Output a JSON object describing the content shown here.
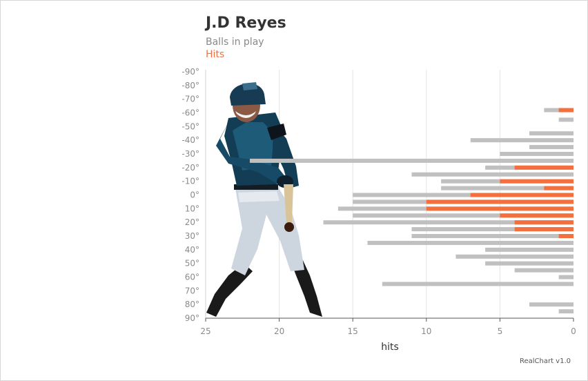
{
  "chart_data": {
    "type": "bar",
    "orientation": "horizontal",
    "title": "J.D Reyes",
    "subtitle": "",
    "xlabel": "hits",
    "ylabel": "",
    "xlim": [
      25,
      0
    ],
    "x_reversed": true,
    "x_ticks": [
      "25",
      "20",
      "15",
      "10",
      "5",
      "0"
    ],
    "x_tick_values": [
      25,
      20,
      15,
      10,
      5,
      0
    ],
    "categories": [
      "-90°",
      "-80°",
      "-70°",
      "-60°",
      "-50°",
      "-40°",
      "-30°",
      "-20°",
      "-10°",
      "0°",
      "10°",
      "20°",
      "30°",
      "40°",
      "50°",
      "60°",
      "70°",
      "80°",
      "90°"
    ],
    "category_values": [
      -90,
      -80,
      -70,
      -60,
      -50,
      -40,
      -30,
      -20,
      -10,
      0,
      10,
      20,
      30,
      40,
      50,
      60,
      70,
      80,
      90
    ],
    "grid": true,
    "legend_position": "top-left",
    "series": [
      {
        "name": "Balls in play",
        "color": "#c0c0c0",
        "points": [
          {
            "angle": -62,
            "value": 2
          },
          {
            "angle": -55,
            "value": 1
          },
          {
            "angle": -45,
            "value": 3
          },
          {
            "angle": -40,
            "value": 7
          },
          {
            "angle": -35,
            "value": 3
          },
          {
            "angle": -30,
            "value": 5
          },
          {
            "angle": -25,
            "value": 22
          },
          {
            "angle": -20,
            "value": 6
          },
          {
            "angle": -15,
            "value": 11
          },
          {
            "angle": -10,
            "value": 9
          },
          {
            "angle": -5,
            "value": 9
          },
          {
            "angle": 0,
            "value": 15
          },
          {
            "angle": 5,
            "value": 15
          },
          {
            "angle": 10,
            "value": 16
          },
          {
            "angle": 15,
            "value": 15
          },
          {
            "angle": 20,
            "value": 17
          },
          {
            "angle": 25,
            "value": 11
          },
          {
            "angle": 30,
            "value": 11
          },
          {
            "angle": 35,
            "value": 14
          },
          {
            "angle": 40,
            "value": 6
          },
          {
            "angle": 45,
            "value": 8
          },
          {
            "angle": 50,
            "value": 6
          },
          {
            "angle": 55,
            "value": 4
          },
          {
            "angle": 60,
            "value": 1
          },
          {
            "angle": 65,
            "value": 13
          },
          {
            "angle": 80,
            "value": 3
          },
          {
            "angle": 85,
            "value": 1
          }
        ]
      },
      {
        "name": "Hits",
        "color": "#f36f3e",
        "points": [
          {
            "angle": -62,
            "value": 1
          },
          {
            "angle": -20,
            "value": 4
          },
          {
            "angle": -10,
            "value": 5
          },
          {
            "angle": -5,
            "value": 2
          },
          {
            "angle": 0,
            "value": 7
          },
          {
            "angle": 5,
            "value": 10
          },
          {
            "angle": 10,
            "value": 10
          },
          {
            "angle": 15,
            "value": 5
          },
          {
            "angle": 20,
            "value": 4
          },
          {
            "angle": 25,
            "value": 4
          },
          {
            "angle": 30,
            "value": 1
          }
        ]
      }
    ],
    "credit": "RealChart v1.0"
  },
  "ui": {
    "subtitle_text": "Balls in play",
    "legend_hits_text": "Hits",
    "credit_text": "RealChart v1.0"
  },
  "decorations": {
    "player_silhouette": "baseball-batter-silhouette"
  }
}
